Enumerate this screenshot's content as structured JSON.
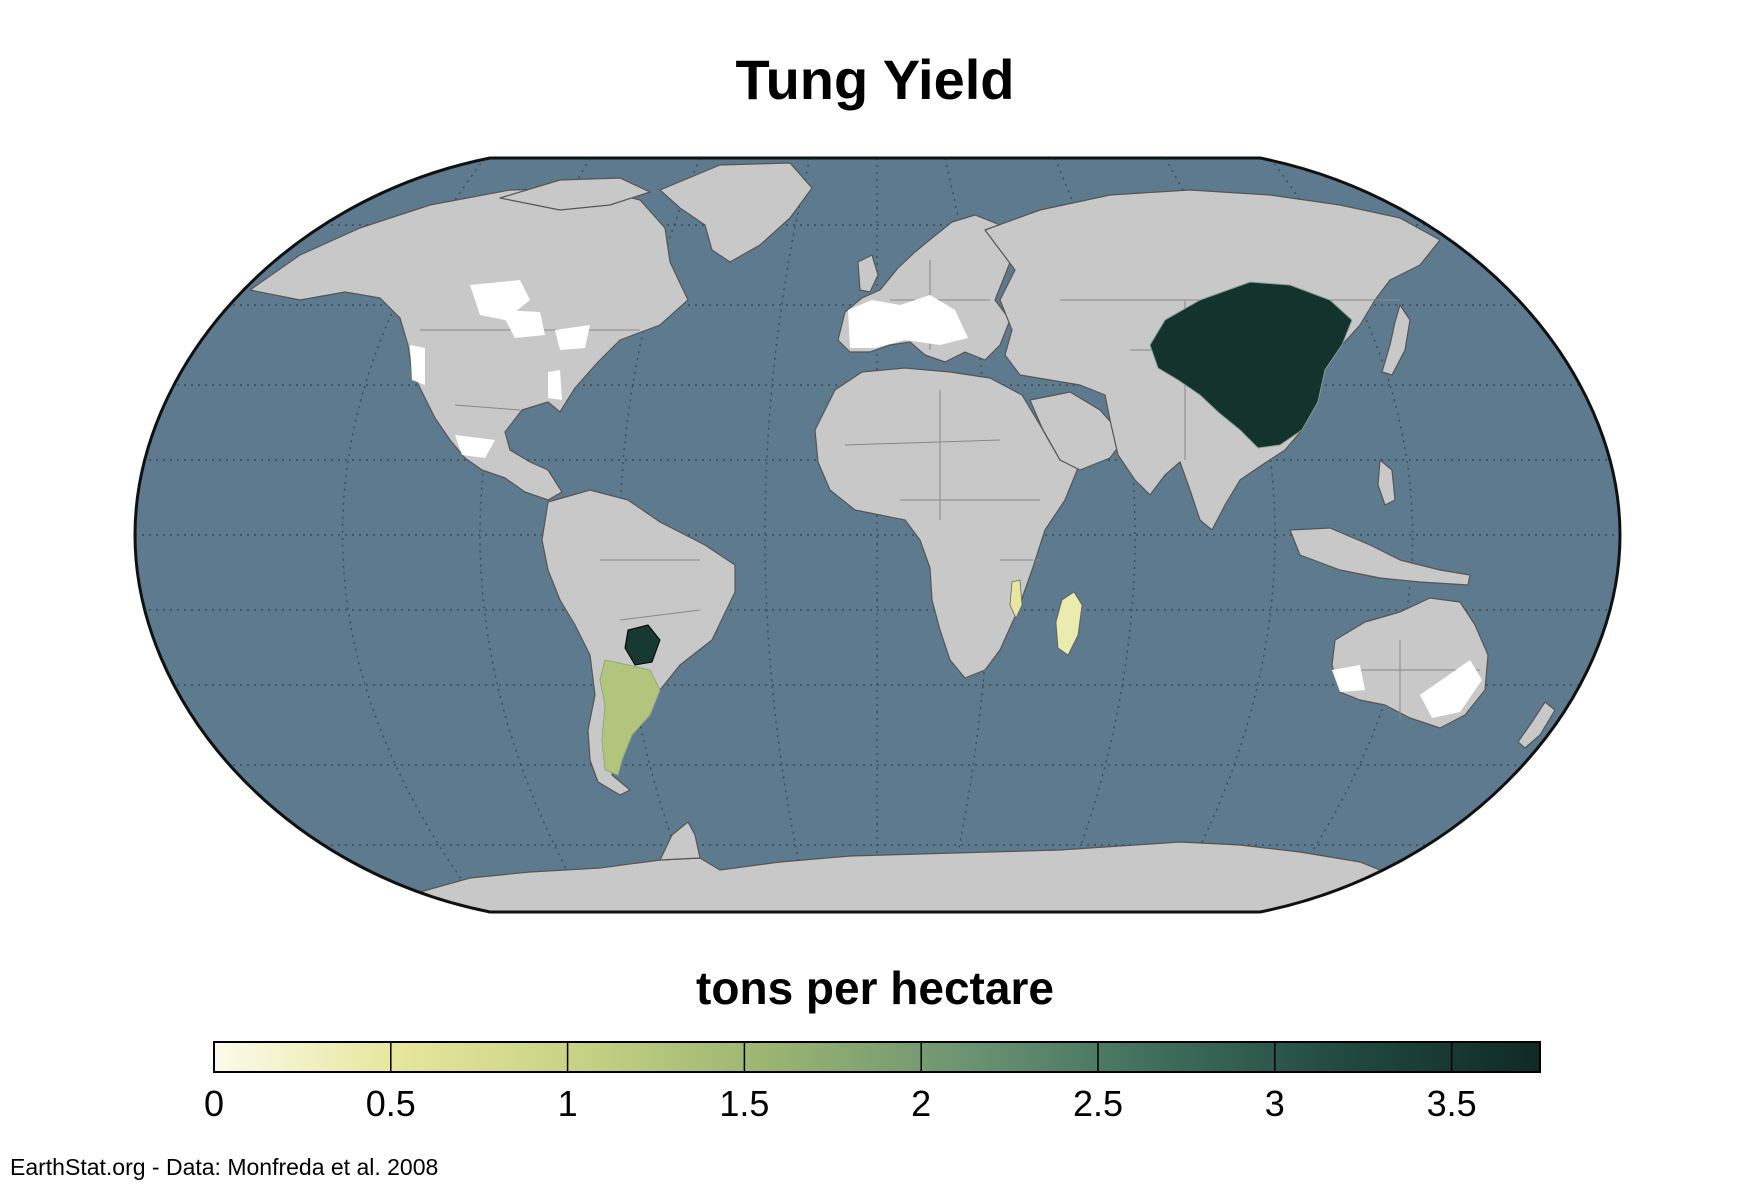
{
  "title": "Tung Yield",
  "legend": {
    "title": "tons per hectare",
    "ticks": [
      "0",
      "0.5",
      "1",
      "1.5",
      "2",
      "2.5",
      "3",
      "3.5"
    ],
    "min": 0,
    "max": 3.75,
    "colors": [
      "#fbfbeb",
      "#e6e69b",
      "#c5d184",
      "#9ab471",
      "#6b9372",
      "#3f6e5c",
      "#224a40",
      "#0f2a26"
    ]
  },
  "map": {
    "projection": "robinson",
    "ocean_color": "#5e7a8e",
    "land_color": "#c8c8c8",
    "no_data_color": "#ffffff",
    "border_color": "#6a6a6a",
    "graticule": "dotted"
  },
  "yield_regions": [
    {
      "name": "China",
      "value": 3.6
    },
    {
      "name": "Paraguay",
      "value": 3.5
    },
    {
      "name": "Argentina",
      "value": 1.3
    },
    {
      "name": "Malawi",
      "value": 0.5
    },
    {
      "name": "Madagascar",
      "value": 0.4
    }
  ],
  "credit": "EarthStat.org - Data: Monfreda et al. 2008"
}
